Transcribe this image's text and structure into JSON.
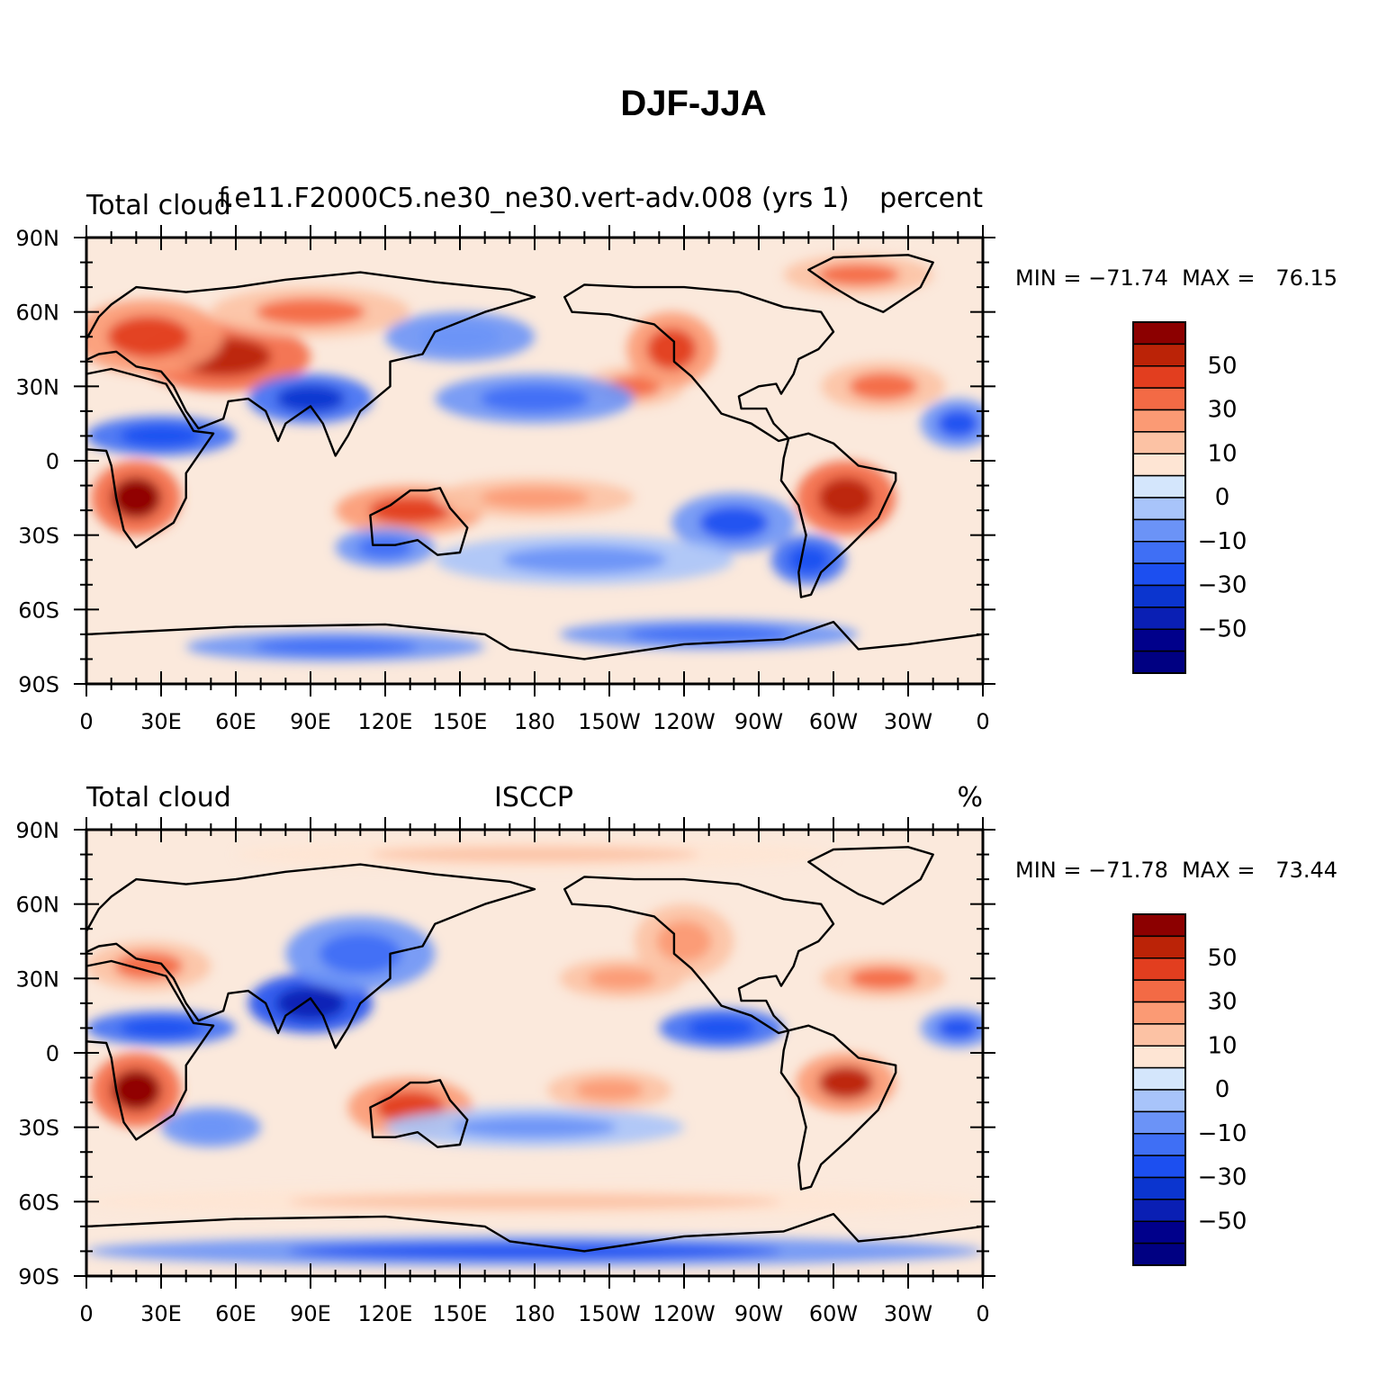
{
  "title": "DJF-JJA",
  "chart_data": [
    {
      "type": "heatmap",
      "title_left": "Total cloud",
      "title_center": "f.e11.F2000C5.ne30_ne30.vert-adv.008 (yrs 1)",
      "title_right": "percent",
      "stats": "MIN = −71.74  MAX =   76.15",
      "min": -71.74,
      "max": 76.15,
      "xlim": [
        0,
        360
      ],
      "ylim": [
        -90,
        90
      ],
      "x_ticks": [
        "0",
        "30E",
        "60E",
        "90E",
        "120E",
        "150E",
        "180",
        "150W",
        "120W",
        "90W",
        "60W",
        "30W",
        "0"
      ],
      "y_ticks": [
        "90N",
        "60N",
        "30N",
        "0",
        "30S",
        "60S",
        "90S"
      ],
      "colorbar_labels": [
        "50",
        "30",
        "10",
        "0",
        "−10",
        "−30",
        "−50"
      ],
      "features": [
        {
          "lon": 20,
          "lat": -15,
          "rx": 18,
          "ry": 15,
          "v": 60
        },
        {
          "lon": 55,
          "lat": 42,
          "rx": 35,
          "ry": 14,
          "v": 55
        },
        {
          "lon": 25,
          "lat": 50,
          "rx": 30,
          "ry": 15,
          "v": 40
        },
        {
          "lon": 90,
          "lat": 60,
          "rx": 40,
          "ry": 10,
          "v": 30
        },
        {
          "lon": 90,
          "lat": 25,
          "rx": 25,
          "ry": 10,
          "v": -50
        },
        {
          "lon": 30,
          "lat": 10,
          "rx": 30,
          "ry": 8,
          "v": -40
        },
        {
          "lon": 130,
          "lat": -20,
          "rx": 30,
          "ry": 10,
          "v": 45
        },
        {
          "lon": 180,
          "lat": -15,
          "rx": 40,
          "ry": 8,
          "v": 25
        },
        {
          "lon": 220,
          "lat": 30,
          "rx": 20,
          "ry": 8,
          "v": 30
        },
        {
          "lon": 235,
          "lat": 45,
          "rx": 18,
          "ry": 15,
          "v": 45
        },
        {
          "lon": 305,
          "lat": -15,
          "rx": 20,
          "ry": 15,
          "v": 55
        },
        {
          "lon": 320,
          "lat": 30,
          "rx": 25,
          "ry": 10,
          "v": 35
        },
        {
          "lon": 310,
          "lat": 75,
          "rx": 30,
          "ry": 8,
          "v": 30
        },
        {
          "lon": 180,
          "lat": 25,
          "rx": 40,
          "ry": 10,
          "v": -25
        },
        {
          "lon": 260,
          "lat": -25,
          "rx": 25,
          "ry": 12,
          "v": -35
        },
        {
          "lon": 290,
          "lat": -40,
          "rx": 15,
          "ry": 10,
          "v": -40
        },
        {
          "lon": 150,
          "lat": 50,
          "rx": 30,
          "ry": 10,
          "v": -20
        },
        {
          "lon": 200,
          "lat": -40,
          "rx": 60,
          "ry": 10,
          "v": -15
        },
        {
          "lon": 120,
          "lat": -35,
          "rx": 20,
          "ry": 8,
          "v": -30
        },
        {
          "lon": 100,
          "lat": -75,
          "rx": 60,
          "ry": 6,
          "v": -30
        },
        {
          "lon": 250,
          "lat": -70,
          "rx": 60,
          "ry": 6,
          "v": -30
        },
        {
          "lon": 350,
          "lat": 15,
          "rx": 15,
          "ry": 10,
          "v": -35
        }
      ]
    },
    {
      "type": "heatmap",
      "title_left": "Total cloud",
      "title_center": "ISCCP",
      "title_right": "%",
      "stats": "MIN = −71.78  MAX =   73.44",
      "min": -71.78,
      "max": 73.44,
      "xlim": [
        0,
        360
      ],
      "ylim": [
        -90,
        90
      ],
      "x_ticks": [
        "0",
        "30E",
        "60E",
        "90E",
        "120E",
        "150E",
        "180",
        "150W",
        "120W",
        "90W",
        "60W",
        "30W",
        "0"
      ],
      "y_ticks": [
        "90N",
        "60N",
        "30N",
        "0",
        "30S",
        "60S",
        "90S"
      ],
      "colorbar_labels": [
        "50",
        "30",
        "10",
        "0",
        "−10",
        "−30",
        "−50"
      ],
      "features": [
        {
          "lon": 20,
          "lat": -15,
          "rx": 18,
          "ry": 15,
          "v": 60
        },
        {
          "lon": 130,
          "lat": -22,
          "rx": 25,
          "ry": 12,
          "v": 45
        },
        {
          "lon": 305,
          "lat": -12,
          "rx": 20,
          "ry": 12,
          "v": 50
        },
        {
          "lon": 320,
          "lat": 30,
          "rx": 25,
          "ry": 8,
          "v": 30
        },
        {
          "lon": 25,
          "lat": 35,
          "rx": 25,
          "ry": 10,
          "v": 30
        },
        {
          "lon": 90,
          "lat": 20,
          "rx": 25,
          "ry": 12,
          "v": -55
        },
        {
          "lon": 30,
          "lat": 10,
          "rx": 30,
          "ry": 7,
          "v": -40
        },
        {
          "lon": 255,
          "lat": 10,
          "rx": 25,
          "ry": 8,
          "v": -40
        },
        {
          "lon": 110,
          "lat": 40,
          "rx": 30,
          "ry": 15,
          "v": -30
        },
        {
          "lon": 215,
          "lat": 30,
          "rx": 25,
          "ry": 8,
          "v": 25
        },
        {
          "lon": 240,
          "lat": 45,
          "rx": 20,
          "ry": 15,
          "v": 20
        },
        {
          "lon": 210,
          "lat": -15,
          "rx": 25,
          "ry": 8,
          "v": 25
        },
        {
          "lon": 180,
          "lat": -30,
          "rx": 60,
          "ry": 8,
          "v": -15
        },
        {
          "lon": 180,
          "lat": -60,
          "rx": 180,
          "ry": 6,
          "v": 15
        },
        {
          "lon": 180,
          "lat": -80,
          "rx": 180,
          "ry": 6,
          "v": -35
        },
        {
          "lon": 180,
          "lat": 80,
          "rx": 120,
          "ry": 6,
          "v": 15
        },
        {
          "lon": 350,
          "lat": 10,
          "rx": 15,
          "ry": 8,
          "v": -35
        },
        {
          "lon": 50,
          "lat": -30,
          "rx": 20,
          "ry": 8,
          "v": -20
        }
      ]
    }
  ]
}
